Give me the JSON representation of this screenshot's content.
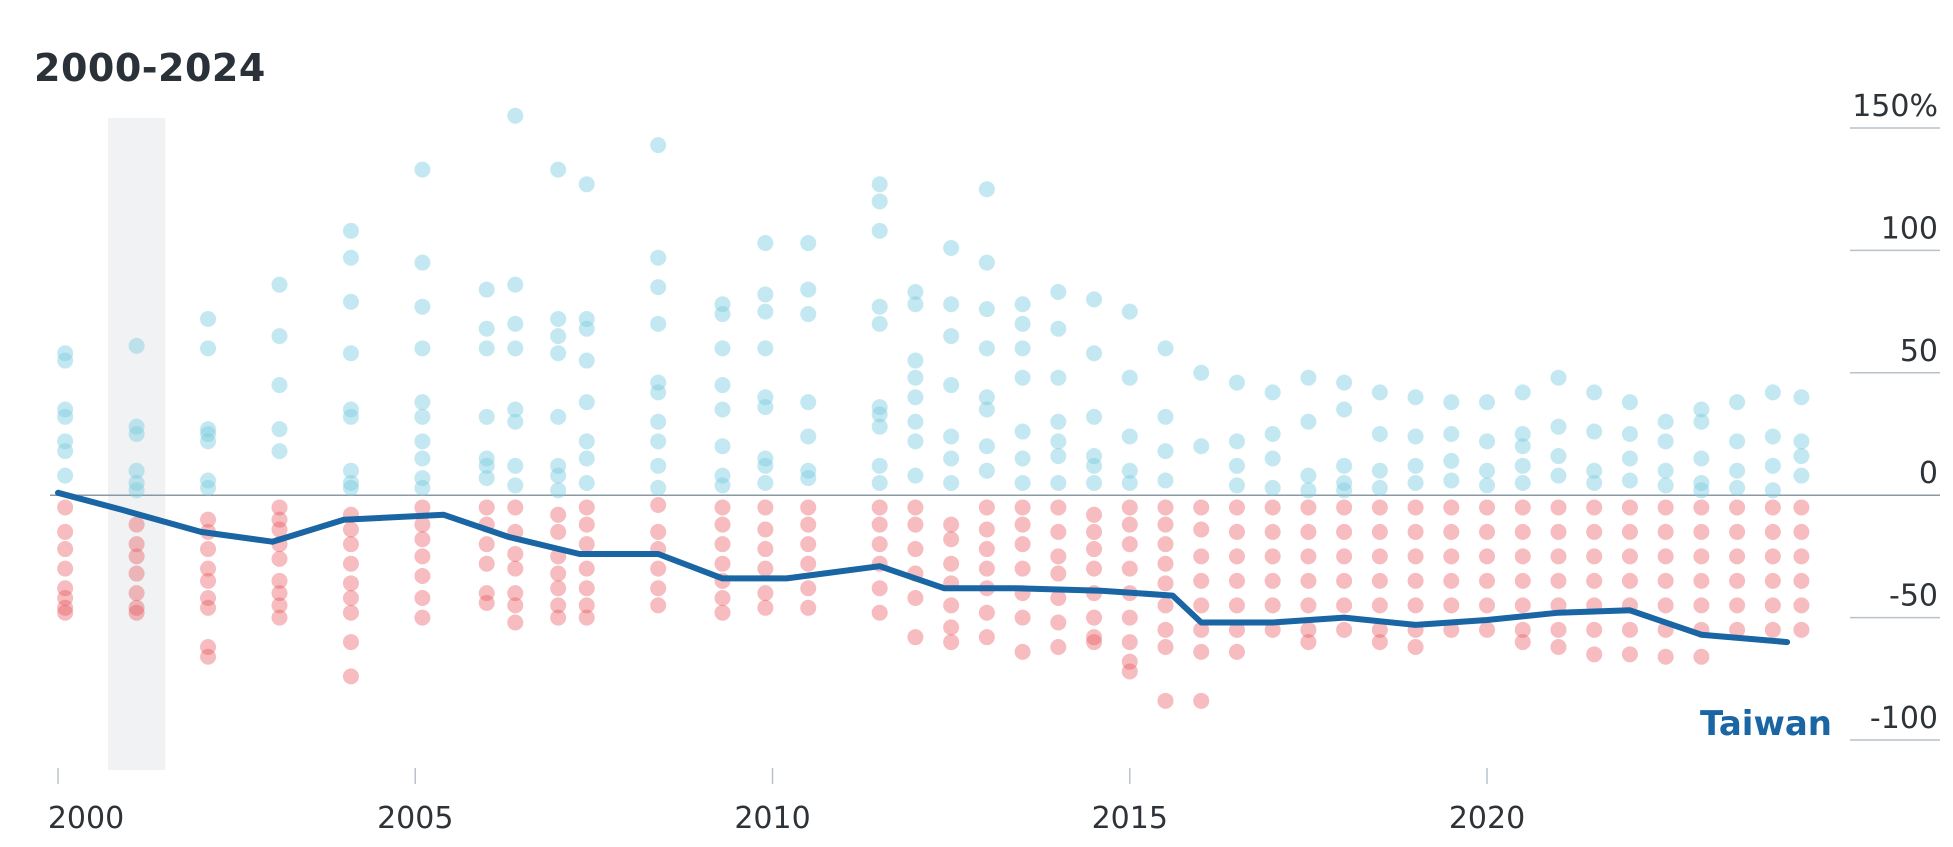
{
  "chart_data": {
    "type": "scatter",
    "title": "2000-2024",
    "xlabel": "",
    "ylabel": "",
    "xlim": [
      2000,
      2024.8
    ],
    "ylim": [
      -100,
      150
    ],
    "x_ticks": [
      "2000",
      "2005",
      "2010",
      "2015",
      "2020"
    ],
    "y_ticks": [
      "150%",
      "100",
      "50",
      "0",
      "-50",
      "-100"
    ],
    "grid": "horizontal",
    "shaded_period": [
      2000.7,
      2001.5
    ],
    "colors": {
      "positive": "#7ccbe0",
      "negative": "#e9585f",
      "highlight_line": "#1a65a3",
      "zero_line": "#8a9aa5",
      "grid": "#b9c2c9",
      "shade": "#f0f2f3",
      "axis_text": "#2e3338"
    },
    "highlight_series": {
      "name": "Taiwan",
      "x": [
        2000,
        2000.9,
        2002,
        2003,
        2004,
        2005.4,
        2006.3,
        2007.3,
        2008.4,
        2009.3,
        2010.2,
        2011.5,
        2012.4,
        2013.4,
        2014.6,
        2015.6,
        2016,
        2017,
        2018,
        2019,
        2020,
        2021,
        2022,
        2023,
        2024.2
      ],
      "y": [
        1,
        -6,
        -15,
        -19,
        -10,
        -8,
        -17,
        -24,
        -24,
        -34,
        -34,
        -29,
        -38,
        -38,
        -39,
        -41,
        -52,
        -52,
        -50,
        -53,
        -51,
        -48,
        -47,
        -57,
        -60
      ]
    },
    "scatter_columns": [
      {
        "x": 2000.1,
        "pos": [
          58,
          55,
          35,
          32,
          22,
          18,
          8
        ],
        "neg": [
          -5,
          -15,
          -22,
          -30,
          -38,
          -42,
          -46,
          -48
        ]
      },
      {
        "x": 2001.1,
        "pos": [
          61,
          28,
          25,
          10,
          5,
          2
        ],
        "neg": [
          -12,
          -20,
          -25,
          -32,
          -40,
          -46,
          -48
        ]
      },
      {
        "x": 2002.1,
        "pos": [
          72,
          60,
          27,
          25,
          22,
          6,
          3
        ],
        "neg": [
          -10,
          -15,
          -22,
          -30,
          -35,
          -42,
          -46,
          -62,
          -66
        ]
      },
      {
        "x": 2003.1,
        "pos": [
          86,
          65,
          45,
          27,
          18
        ],
        "neg": [
          -5,
          -10,
          -14,
          -20,
          -26,
          -35,
          -40,
          -45,
          -50
        ]
      },
      {
        "x": 2004.1,
        "pos": [
          108,
          97,
          79,
          58,
          35,
          32,
          10,
          5,
          3
        ],
        "neg": [
          -8,
          -14,
          -20,
          -28,
          -36,
          -42,
          -48,
          -60,
          -74
        ]
      },
      {
        "x": 2005.1,
        "pos": [
          133,
          95,
          77,
          60,
          38,
          32,
          22,
          15,
          7,
          3
        ],
        "neg": [
          -5,
          -12,
          -18,
          -25,
          -33,
          -42,
          -50
        ]
      },
      {
        "x": 2006.0,
        "pos": [
          84,
          68,
          60,
          32,
          15,
          12,
          7
        ],
        "neg": [
          -5,
          -12,
          -20,
          -28,
          -40,
          -44
        ]
      },
      {
        "x": 2006.4,
        "pos": [
          155,
          86,
          70,
          60,
          35,
          30,
          12,
          4
        ],
        "neg": [
          -5,
          -15,
          -24,
          -30,
          -40,
          -45,
          -52
        ]
      },
      {
        "x": 2007.0,
        "pos": [
          133,
          72,
          65,
          58,
          32,
          12,
          8,
          2
        ],
        "neg": [
          -8,
          -15,
          -25,
          -32,
          -38,
          -45,
          -50
        ]
      },
      {
        "x": 2007.4,
        "pos": [
          127,
          72,
          68,
          55,
          38,
          22,
          15,
          5
        ],
        "neg": [
          -5,
          -12,
          -20,
          -30,
          -38,
          -45,
          -50
        ]
      },
      {
        "x": 2008.4,
        "pos": [
          143,
          97,
          85,
          70,
          46,
          42,
          30,
          22,
          12,
          3
        ],
        "neg": [
          -4,
          -15,
          -22,
          -30,
          -38,
          -45
        ]
      },
      {
        "x": 2009.3,
        "pos": [
          78,
          74,
          60,
          45,
          35,
          20,
          8,
          4
        ],
        "neg": [
          -5,
          -12,
          -20,
          -28,
          -35,
          -42,
          -48
        ]
      },
      {
        "x": 2009.9,
        "pos": [
          103,
          82,
          75,
          60,
          40,
          36,
          15,
          12,
          5
        ],
        "neg": [
          -5,
          -14,
          -22,
          -30,
          -40,
          -46
        ]
      },
      {
        "x": 2010.5,
        "pos": [
          103,
          84,
          74,
          38,
          24,
          10,
          7
        ],
        "neg": [
          -5,
          -12,
          -20,
          -28,
          -38,
          -46
        ]
      },
      {
        "x": 2011.5,
        "pos": [
          127,
          120,
          108,
          77,
          70,
          36,
          33,
          28,
          12,
          5
        ],
        "neg": [
          -5,
          -12,
          -20,
          -28,
          -38,
          -48
        ]
      },
      {
        "x": 2012.0,
        "pos": [
          83,
          78,
          55,
          48,
          40,
          30,
          22,
          8
        ],
        "neg": [
          -5,
          -12,
          -22,
          -32,
          -42,
          -58
        ]
      },
      {
        "x": 2012.5,
        "pos": [
          101,
          78,
          65,
          45,
          24,
          15,
          5
        ],
        "neg": [
          -12,
          -18,
          -28,
          -36,
          -45,
          -54,
          -60
        ]
      },
      {
        "x": 2013.0,
        "pos": [
          125,
          95,
          76,
          60,
          40,
          35,
          20,
          10
        ],
        "neg": [
          -5,
          -14,
          -22,
          -30,
          -38,
          -48,
          -58
        ]
      },
      {
        "x": 2013.5,
        "pos": [
          78,
          70,
          60,
          48,
          26,
          15,
          5
        ],
        "neg": [
          -5,
          -12,
          -20,
          -30,
          -40,
          -50,
          -64
        ]
      },
      {
        "x": 2014.0,
        "pos": [
          83,
          68,
          48,
          30,
          22,
          16,
          5
        ],
        "neg": [
          -5,
          -15,
          -25,
          -32,
          -42,
          -52,
          -62
        ]
      },
      {
        "x": 2014.5,
        "pos": [
          80,
          58,
          32,
          16,
          12,
          5
        ],
        "neg": [
          -8,
          -15,
          -22,
          -30,
          -40,
          -50,
          -58,
          -60
        ]
      },
      {
        "x": 2015.0,
        "pos": [
          75,
          48,
          24,
          10,
          5
        ],
        "neg": [
          -5,
          -12,
          -20,
          -30,
          -40,
          -50,
          -60,
          -68,
          -72
        ]
      },
      {
        "x": 2015.5,
        "pos": [
          60,
          32,
          18,
          6
        ],
        "neg": [
          -5,
          -12,
          -20,
          -28,
          -36,
          -45,
          -55,
          -62,
          -84
        ]
      },
      {
        "x": 2016.0,
        "pos": [
          50,
          20
        ],
        "neg": [
          -5,
          -14,
          -25,
          -35,
          -45,
          -55,
          -64,
          -84
        ]
      },
      {
        "x": 2016.5,
        "pos": [
          46,
          22,
          12,
          4
        ],
        "neg": [
          -5,
          -15,
          -25,
          -35,
          -45,
          -55,
          -64
        ]
      },
      {
        "x": 2017.0,
        "pos": [
          42,
          25,
          15,
          3
        ],
        "neg": [
          -5,
          -15,
          -25,
          -35,
          -45,
          -55
        ]
      },
      {
        "x": 2017.5,
        "pos": [
          48,
          30,
          8,
          2
        ],
        "neg": [
          -5,
          -15,
          -25,
          -35,
          -45,
          -55,
          -60
        ]
      },
      {
        "x": 2018.0,
        "pos": [
          46,
          35,
          12,
          5,
          2
        ],
        "neg": [
          -5,
          -15,
          -25,
          -35,
          -45,
          -55
        ]
      },
      {
        "x": 2018.5,
        "pos": [
          42,
          25,
          10,
          3
        ],
        "neg": [
          -5,
          -15,
          -25,
          -35,
          -45,
          -55,
          -60
        ]
      },
      {
        "x": 2019.0,
        "pos": [
          40,
          24,
          12,
          5
        ],
        "neg": [
          -5,
          -15,
          -25,
          -35,
          -45,
          -55,
          -62
        ]
      },
      {
        "x": 2019.5,
        "pos": [
          38,
          25,
          14,
          6
        ],
        "neg": [
          -5,
          -15,
          -25,
          -35,
          -45,
          -55
        ]
      },
      {
        "x": 2020.0,
        "pos": [
          38,
          22,
          10,
          4
        ],
        "neg": [
          -5,
          -15,
          -25,
          -35,
          -45,
          -55
        ]
      },
      {
        "x": 2020.5,
        "pos": [
          42,
          25,
          20,
          12,
          5
        ],
        "neg": [
          -5,
          -15,
          -25,
          -35,
          -45,
          -55,
          -60
        ]
      },
      {
        "x": 2021.0,
        "pos": [
          48,
          28,
          16,
          8
        ],
        "neg": [
          -5,
          -15,
          -25,
          -35,
          -45,
          -55,
          -62
        ]
      },
      {
        "x": 2021.5,
        "pos": [
          42,
          26,
          10,
          5
        ],
        "neg": [
          -5,
          -15,
          -25,
          -35,
          -45,
          -55,
          -65
        ]
      },
      {
        "x": 2022.0,
        "pos": [
          38,
          25,
          15,
          6
        ],
        "neg": [
          -5,
          -15,
          -25,
          -35,
          -45,
          -55,
          -65
        ]
      },
      {
        "x": 2022.5,
        "pos": [
          30,
          22,
          10,
          4
        ],
        "neg": [
          -5,
          -15,
          -25,
          -35,
          -45,
          -55,
          -66
        ]
      },
      {
        "x": 2023.0,
        "pos": [
          35,
          30,
          15,
          5,
          2
        ],
        "neg": [
          -5,
          -15,
          -25,
          -35,
          -45,
          -55,
          -66
        ]
      },
      {
        "x": 2023.5,
        "pos": [
          38,
          22,
          10,
          3
        ],
        "neg": [
          -5,
          -15,
          -25,
          -35,
          -45,
          -55
        ]
      },
      {
        "x": 2024.0,
        "pos": [
          42,
          24,
          12,
          2
        ],
        "neg": [
          -5,
          -15,
          -25,
          -35,
          -45,
          -55
        ]
      },
      {
        "x": 2024.4,
        "pos": [
          40,
          22,
          16,
          8
        ],
        "neg": [
          -5,
          -15,
          -25,
          -35,
          -45,
          -55
        ]
      }
    ]
  }
}
